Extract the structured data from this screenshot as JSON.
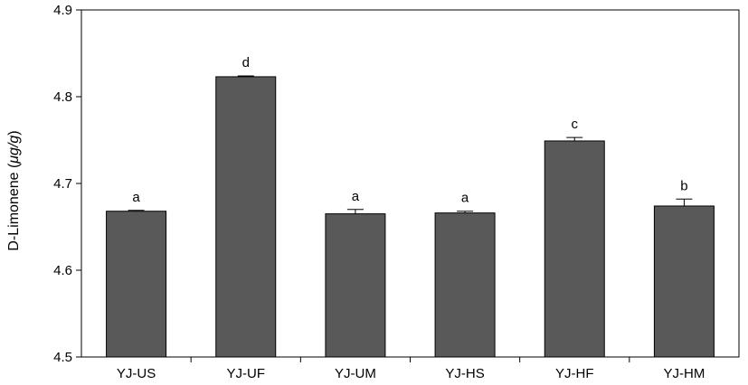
{
  "chart_data": {
    "type": "bar",
    "ylabel_prefix": "D-Limonene (",
    "ylabel_unit": "μg/g",
    "ylabel_suffix": ")",
    "xlabel": "",
    "ylim": [
      4.5,
      4.9
    ],
    "yticks": [
      "4.5",
      "4.6",
      "4.7",
      "4.8",
      "4.9"
    ],
    "categories": [
      "YJ-US",
      "YJ-UF",
      "YJ-UM",
      "YJ-HS",
      "YJ-HF",
      "YJ-HM"
    ],
    "values": [
      4.668,
      4.823,
      4.665,
      4.666,
      4.749,
      4.674
    ],
    "errors": [
      0.001,
      0.001,
      0.005,
      0.002,
      0.004,
      0.008
    ],
    "significance": [
      "a",
      "d",
      "a",
      "a",
      "c",
      "b"
    ],
    "bar_color": "#595959",
    "grid": false
  }
}
